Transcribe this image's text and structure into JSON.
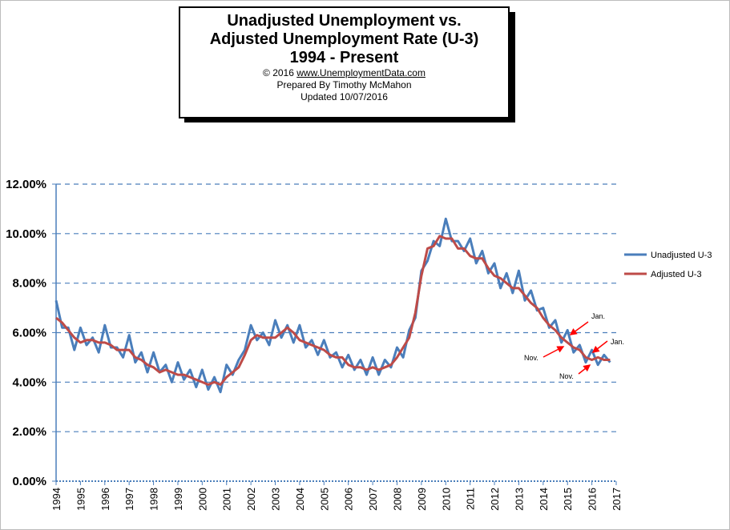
{
  "title_box": {
    "line1": "Unadjusted Unemployment vs.",
    "line2": "Adjusted Unemployment Rate (U-3)",
    "line3": "1994 - Present",
    "copyright_prefix": "© 2016  ",
    "copyright_link": "www.UnemploymentData.com",
    "prepared": "Prepared  By Timothy McMahon",
    "updated": "Updated  10/07/2016"
  },
  "colors": {
    "unadjusted": "#4a7ebb",
    "adjusted": "#be4b48",
    "grid": "#4a7ebb",
    "arrow": "#ff0000"
  },
  "chart_data": {
    "type": "line",
    "ylim": [
      0,
      12
    ],
    "xlim": [
      1994,
      2017
    ],
    "y_ticks": [
      "0.00%",
      "2.00%",
      "4.00%",
      "6.00%",
      "8.00%",
      "10.00%",
      "12.00%"
    ],
    "x_ticks": [
      "1994",
      "1995",
      "1996",
      "1997",
      "1998",
      "1999",
      "2000",
      "2001",
      "2002",
      "2003",
      "2004",
      "2005",
      "2006",
      "2007",
      "2008",
      "2009",
      "2010",
      "2011",
      "2012",
      "2013",
      "2014",
      "2015",
      "2016",
      "2017"
    ],
    "grid": "horizontal dashed",
    "legend_position": "right",
    "series": [
      {
        "name": "Unadjusted U-3",
        "x": [
          1994.0,
          1994.25,
          1994.5,
          1994.75,
          1995.0,
          1995.25,
          1995.5,
          1995.75,
          1996.0,
          1996.25,
          1996.5,
          1996.75,
          1997.0,
          1997.25,
          1997.5,
          1997.75,
          1998.0,
          1998.25,
          1998.5,
          1998.75,
          1999.0,
          1999.25,
          1999.5,
          1999.75,
          2000.0,
          2000.25,
          2000.5,
          2000.75,
          2001.0,
          2001.25,
          2001.5,
          2001.75,
          2002.0,
          2002.25,
          2002.5,
          2002.75,
          2003.0,
          2003.25,
          2003.5,
          2003.75,
          2004.0,
          2004.25,
          2004.5,
          2004.75,
          2005.0,
          2005.25,
          2005.5,
          2005.75,
          2006.0,
          2006.25,
          2006.5,
          2006.75,
          2007.0,
          2007.25,
          2007.5,
          2007.75,
          2008.0,
          2008.25,
          2008.5,
          2008.75,
          2009.0,
          2009.25,
          2009.5,
          2009.75,
          2010.0,
          2010.25,
          2010.5,
          2010.75,
          2011.0,
          2011.25,
          2011.5,
          2011.75,
          2012.0,
          2012.25,
          2012.5,
          2012.75,
          2013.0,
          2013.25,
          2013.5,
          2013.75,
          2014.0,
          2014.25,
          2014.5,
          2014.75,
          2015.0,
          2015.25,
          2015.5,
          2015.75,
          2016.0,
          2016.25,
          2016.5,
          2016.75
        ],
        "values": [
          7.3,
          6.2,
          6.2,
          5.3,
          6.2,
          5.5,
          5.8,
          5.2,
          6.3,
          5.4,
          5.4,
          5.0,
          5.9,
          4.8,
          5.2,
          4.4,
          5.2,
          4.4,
          4.7,
          4.0,
          4.8,
          4.1,
          4.5,
          3.8,
          4.5,
          3.7,
          4.2,
          3.6,
          4.7,
          4.3,
          4.9,
          5.3,
          6.3,
          5.7,
          6.0,
          5.5,
          6.5,
          5.8,
          6.3,
          5.6,
          6.3,
          5.4,
          5.7,
          5.1,
          5.7,
          5.0,
          5.2,
          4.6,
          5.1,
          4.5,
          4.9,
          4.3,
          5.0,
          4.3,
          4.9,
          4.6,
          5.4,
          5.0,
          6.1,
          6.6,
          8.5,
          8.9,
          9.7,
          9.5,
          10.6,
          9.7,
          9.7,
          9.3,
          9.8,
          8.8,
          9.3,
          8.4,
          8.8,
          7.8,
          8.4,
          7.6,
          8.5,
          7.3,
          7.7,
          6.9,
          7.0,
          6.2,
          6.5,
          5.6,
          6.1,
          5.2,
          5.5,
          4.8,
          5.3,
          4.7,
          5.1,
          4.8
        ]
      },
      {
        "name": "Adjusted U-3",
        "x": [
          1994.0,
          1994.25,
          1994.5,
          1994.75,
          1995.0,
          1995.25,
          1995.5,
          1995.75,
          1996.0,
          1996.25,
          1996.5,
          1996.75,
          1997.0,
          1997.25,
          1997.5,
          1997.75,
          1998.0,
          1998.25,
          1998.5,
          1998.75,
          1999.0,
          1999.25,
          1999.5,
          1999.75,
          2000.0,
          2000.25,
          2000.5,
          2000.75,
          2001.0,
          2001.25,
          2001.5,
          2001.75,
          2002.0,
          2002.25,
          2002.5,
          2002.75,
          2003.0,
          2003.25,
          2003.5,
          2003.75,
          2004.0,
          2004.25,
          2004.5,
          2004.75,
          2005.0,
          2005.25,
          2005.5,
          2005.75,
          2006.0,
          2006.25,
          2006.5,
          2006.75,
          2007.0,
          2007.25,
          2007.5,
          2007.75,
          2008.0,
          2008.25,
          2008.5,
          2008.75,
          2009.0,
          2009.25,
          2009.5,
          2009.75,
          2010.0,
          2010.25,
          2010.5,
          2010.75,
          2011.0,
          2011.25,
          2011.5,
          2011.75,
          2012.0,
          2012.25,
          2012.5,
          2012.75,
          2013.0,
          2013.25,
          2013.5,
          2013.75,
          2014.0,
          2014.25,
          2014.5,
          2014.75,
          2015.0,
          2015.25,
          2015.5,
          2015.75,
          2016.0,
          2016.25,
          2016.5,
          2016.75
        ],
        "values": [
          6.6,
          6.4,
          6.1,
          5.8,
          5.6,
          5.7,
          5.7,
          5.6,
          5.6,
          5.5,
          5.3,
          5.3,
          5.3,
          5.0,
          4.9,
          4.7,
          4.6,
          4.4,
          4.5,
          4.4,
          4.3,
          4.3,
          4.2,
          4.1,
          4.0,
          3.9,
          4.0,
          3.9,
          4.2,
          4.4,
          4.6,
          5.1,
          5.7,
          5.9,
          5.8,
          5.8,
          5.8,
          6.0,
          6.2,
          6.0,
          5.7,
          5.6,
          5.5,
          5.4,
          5.3,
          5.1,
          5.0,
          5.0,
          4.7,
          4.6,
          4.6,
          4.5,
          4.6,
          4.5,
          4.6,
          4.7,
          5.0,
          5.4,
          5.8,
          6.8,
          8.3,
          9.4,
          9.5,
          9.9,
          9.8,
          9.8,
          9.4,
          9.4,
          9.1,
          9.0,
          9.0,
          8.6,
          8.3,
          8.2,
          8.0,
          7.8,
          7.8,
          7.5,
          7.2,
          7.0,
          6.6,
          6.3,
          6.1,
          5.8,
          5.6,
          5.4,
          5.3,
          5.0,
          4.9,
          5.0,
          4.9,
          4.9
        ]
      }
    ],
    "annotations": [
      "Jan.",
      "Nov.",
      "Jan.",
      "Nov."
    ]
  }
}
